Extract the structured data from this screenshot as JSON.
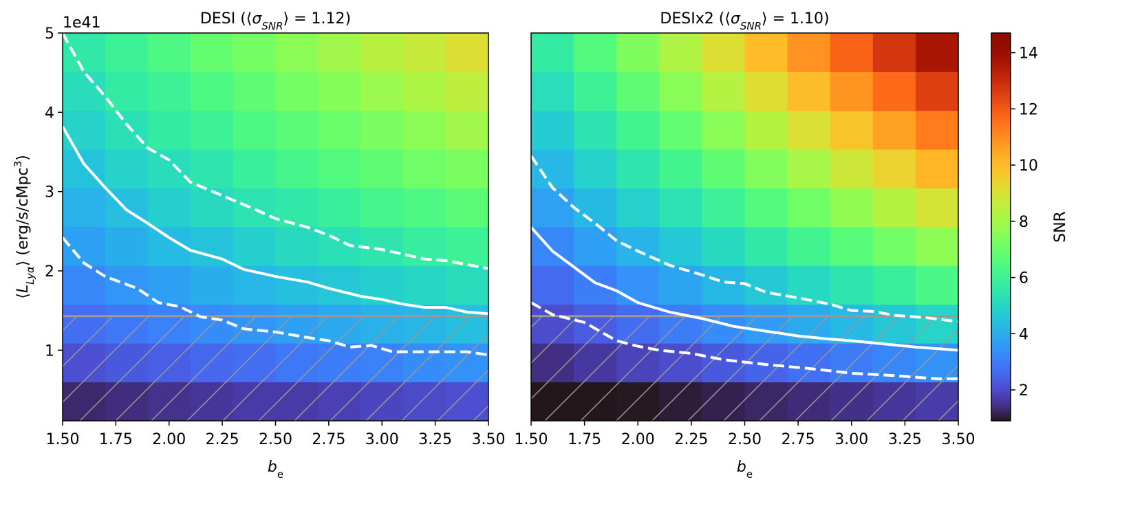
{
  "chart_data": [
    {
      "type": "heatmap",
      "title": [
        {
          "text": "DESI (⟨"
        },
        {
          "text": "σ",
          "style": "italic"
        },
        {
          "text": "SNR",
          "style": "italic-sub"
        },
        {
          "text": "⟩ = 1.12)"
        }
      ],
      "xlabel": [
        {
          "text": "b",
          "style": "italic"
        },
        {
          "text": "e",
          "style": "sub"
        }
      ],
      "ylabel": [
        {
          "text": "⟨"
        },
        {
          "text": "L",
          "style": "italic"
        },
        {
          "text": "Lyα",
          "style": "italic-sub"
        },
        {
          "text": "⟩ (erg/s/cMpc"
        },
        {
          "text": "3",
          "style": "sup"
        },
        {
          "text": ")"
        }
      ],
      "y_offset_label": "1e41",
      "colormap": "turbo",
      "clim": [
        0.9,
        14.7
      ],
      "xlim": [
        1.5,
        3.5
      ],
      "ylim": [
        0.11,
        5
      ],
      "xticks": [
        {
          "value": 1.5,
          "label": "1.50"
        },
        {
          "value": 1.75,
          "label": "1.75"
        },
        {
          "value": 2.0,
          "label": "2.00"
        },
        {
          "value": 2.25,
          "label": "2.25"
        },
        {
          "value": 2.5,
          "label": "2.50"
        },
        {
          "value": 2.75,
          "label": "2.75"
        },
        {
          "value": 3.0,
          "label": "3.00"
        },
        {
          "value": 3.25,
          "label": "3.25"
        },
        {
          "value": 3.5,
          "label": "3.50"
        }
      ],
      "yticks": [
        1,
        2,
        3,
        4,
        5
      ],
      "x": [
        1.6,
        1.8,
        2.0,
        2.2,
        2.4,
        2.6,
        2.8,
        3.0,
        3.2,
        3.4
      ],
      "y": [
        0.355,
        0.844,
        1.333,
        1.822,
        2.311,
        2.8,
        3.289,
        3.778,
        4.267,
        4.756
      ],
      "z": [
        [
          1.3,
          1.4,
          1.5,
          1.6,
          1.7,
          1.7,
          1.8,
          1.9,
          2.0,
          2.1
        ],
        [
          2.1,
          2.3,
          2.4,
          2.6,
          2.7,
          2.9,
          3.0,
          3.1,
          3.3,
          3.4
        ],
        [
          2.7,
          2.9,
          3.1,
          3.3,
          3.5,
          3.7,
          3.9,
          4.1,
          4.2,
          4.4
        ],
        [
          3.2,
          3.5,
          3.7,
          4.0,
          4.2,
          4.4,
          4.6,
          4.8,
          5.0,
          5.2
        ],
        [
          3.7,
          4.0,
          4.3,
          4.5,
          4.8,
          5.1,
          5.3,
          5.5,
          5.8,
          6.0
        ],
        [
          4.1,
          4.4,
          4.8,
          5.1,
          5.4,
          5.6,
          5.9,
          6.2,
          6.4,
          6.7
        ],
        [
          4.5,
          4.9,
          5.2,
          5.5,
          5.9,
          6.2,
          6.5,
          6.8,
          7.1,
          7.3
        ],
        [
          4.9,
          5.3,
          5.7,
          6.0,
          6.4,
          6.7,
          7.0,
          7.3,
          7.6,
          8.0
        ],
        [
          5.2,
          5.7,
          6.0,
          6.4,
          6.8,
          7.2,
          7.5,
          7.9,
          8.2,
          8.5
        ],
        [
          5.6,
          6.0,
          6.4,
          6.9,
          7.2,
          7.6,
          8.0,
          8.4,
          8.7,
          9.1
        ]
      ],
      "contours": [
        {
          "style": "solid",
          "color": "#ffffff",
          "x": [
            1.5,
            1.6,
            1.7,
            1.8,
            1.9,
            2.0,
            2.1,
            2.25,
            2.35,
            2.5,
            2.65,
            2.75,
            2.9,
            3.0,
            3.1,
            3.2,
            3.3,
            3.4,
            3.5
          ],
          "y": [
            3.82,
            3.35,
            3.05,
            2.77,
            2.6,
            2.42,
            2.26,
            2.15,
            2.02,
            1.93,
            1.86,
            1.78,
            1.68,
            1.64,
            1.58,
            1.54,
            1.54,
            1.48,
            1.46
          ]
        },
        {
          "style": "dashed",
          "color": "#ffffff",
          "x": [
            1.5,
            1.6,
            1.7,
            1.8,
            1.9,
            2.0,
            2.1,
            2.25,
            2.4,
            2.5,
            2.65,
            2.75,
            2.85,
            3.0,
            3.2,
            3.3,
            3.5
          ],
          "y": [
            5,
            4.51,
            4.2,
            3.85,
            3.55,
            3.4,
            3.12,
            2.95,
            2.78,
            2.66,
            2.55,
            2.45,
            2.32,
            2.27,
            2.15,
            2.13,
            2.03
          ]
        },
        {
          "style": "dashed",
          "color": "#ffffff",
          "x": [
            1.5,
            1.6,
            1.7,
            1.85,
            1.95,
            2.05,
            2.15,
            2.25,
            2.35,
            2.5,
            2.65,
            2.75,
            2.85,
            2.95,
            3.05,
            3.25,
            3.4,
            3.5
          ],
          "y": [
            2.42,
            2.1,
            1.93,
            1.78,
            1.6,
            1.55,
            1.42,
            1.38,
            1.27,
            1.23,
            1.16,
            1.12,
            1.04,
            1.06,
            0.98,
            0.98,
            0.98,
            0.94
          ]
        }
      ],
      "hatch_below": 1.43,
      "hatch_color": "#999999"
    },
    {
      "type": "heatmap",
      "title": [
        {
          "text": "DESIx2 (⟨"
        },
        {
          "text": "σ",
          "style": "italic"
        },
        {
          "text": "SNR",
          "style": "italic-sub"
        },
        {
          "text": "⟩ = 1.10)"
        }
      ],
      "xlabel": [
        {
          "text": "b",
          "style": "italic"
        },
        {
          "text": "e",
          "style": "sub"
        }
      ],
      "colormap": "turbo",
      "clim": [
        0.9,
        14.7
      ],
      "xlim": [
        1.5,
        3.5
      ],
      "ylim": [
        0.11,
        5
      ],
      "xticks": [
        {
          "value": 1.5,
          "label": "1.50"
        },
        {
          "value": 1.75,
          "label": "1.75"
        },
        {
          "value": 2.0,
          "label": "2.00"
        },
        {
          "value": 2.25,
          "label": "2.25"
        },
        {
          "value": 2.5,
          "label": "2.50"
        },
        {
          "value": 2.75,
          "label": "2.75"
        },
        {
          "value": 3.0,
          "label": "3.00"
        },
        {
          "value": 3.25,
          "label": "3.25"
        },
        {
          "value": 3.5,
          "label": "3.50"
        }
      ],
      "x": [
        1.6,
        1.8,
        2.0,
        2.2,
        2.4,
        2.6,
        2.8,
        3.0,
        3.2,
        3.4
      ],
      "y": [
        0.355,
        0.844,
        1.333,
        1.822,
        2.311,
        2.8,
        3.289,
        3.778,
        4.267,
        4.756
      ],
      "z": [
        [
          0.9,
          0.9,
          0.93,
          1.03,
          1.14,
          1.26,
          1.37,
          1.48,
          1.6,
          1.71
        ],
        [
          1.43,
          1.64,
          1.85,
          2.07,
          2.29,
          2.51,
          2.74,
          2.96,
          3.2,
          3.43
        ],
        [
          2.06,
          2.36,
          2.67,
          2.98,
          3.3,
          3.62,
          3.94,
          4.27,
          4.6,
          4.94
        ],
        [
          2.64,
          3.03,
          3.42,
          3.82,
          4.22,
          4.64,
          5.05,
          5.47,
          5.9,
          6.33
        ],
        [
          3.2,
          3.66,
          4.14,
          4.62,
          5.11,
          5.61,
          6.11,
          6.62,
          7.14,
          7.66
        ],
        [
          3.73,
          4.28,
          4.83,
          5.39,
          5.97,
          6.55,
          7.13,
          7.73,
          8.33,
          8.93
        ],
        [
          4.24,
          4.86,
          5.49,
          6.13,
          6.78,
          7.45,
          8.11,
          8.79,
          9.47,
          10.16
        ],
        [
          4.74,
          5.43,
          6.14,
          6.85,
          7.58,
          8.32,
          9.06,
          9.82,
          10.59,
          11.35
        ],
        [
          5.22,
          5.99,
          6.77,
          7.55,
          8.36,
          9.17,
          9.99,
          10.83,
          11.67,
          12.52
        ],
        [
          5.7,
          6.53,
          7.38,
          8.24,
          9.12,
          10.01,
          10.9,
          11.81,
          12.73,
          13.65
        ]
      ],
      "contours": [
        {
          "style": "solid",
          "color": "#ffffff",
          "x": [
            1.5,
            1.6,
            1.7,
            1.8,
            1.9,
            2.0,
            2.15,
            2.3,
            2.45,
            2.6,
            2.75,
            2.9,
            3.0,
            3.15,
            3.3,
            3.5
          ],
          "y": [
            2.55,
            2.25,
            2.05,
            1.85,
            1.75,
            1.6,
            1.48,
            1.4,
            1.3,
            1.24,
            1.18,
            1.14,
            1.12,
            1.08,
            1.04,
            1.0
          ]
        },
        {
          "style": "dashed",
          "color": "#ffffff",
          "x": [
            1.5,
            1.6,
            1.7,
            1.8,
            1.9,
            2.0,
            2.15,
            2.3,
            2.4,
            2.5,
            2.6,
            2.75,
            2.9,
            3.0,
            3.1,
            3.2,
            3.35,
            3.5
          ],
          "y": [
            3.45,
            3.05,
            2.8,
            2.6,
            2.38,
            2.25,
            2.07,
            1.95,
            1.86,
            1.84,
            1.73,
            1.66,
            1.58,
            1.5,
            1.49,
            1.44,
            1.41,
            1.36
          ]
        },
        {
          "style": "dashed",
          "color": "#ffffff",
          "x": [
            1.5,
            1.6,
            1.75,
            1.9,
            2.0,
            2.1,
            2.25,
            2.4,
            2.6,
            2.8,
            3.0,
            3.2,
            3.4,
            3.5
          ],
          "y": [
            1.6,
            1.45,
            1.35,
            1.12,
            1.05,
            1.0,
            0.96,
            0.88,
            0.82,
            0.77,
            0.71,
            0.68,
            0.64,
            0.64
          ]
        }
      ],
      "hatch_below": 1.43,
      "hatch_color": "#999999"
    },
    {
      "type": "colorbar",
      "label": "SNR",
      "colormap": "turbo",
      "ylim": [
        0.9,
        14.7
      ],
      "yticks": [
        2,
        4,
        6,
        8,
        10,
        12,
        14
      ]
    }
  ]
}
